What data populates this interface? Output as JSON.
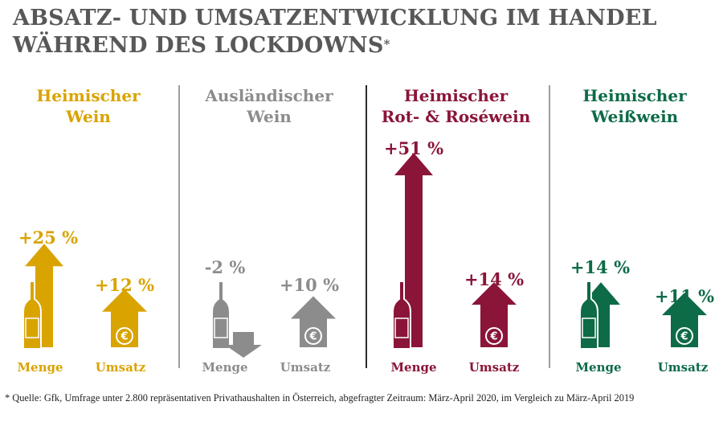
{
  "title_line1": "ABSATZ- UND UMSATZENTWICKLUNG IM HANDEL",
  "title_line2": "WÄHREND DES LOCKDOWNS",
  "title_mark": "*",
  "footnote": "* Quelle: Gfk, Umfrage unter 2.800 repräsentativen Privathaushalten in Österreich, abgefragter Zeitraum: März-April 2020, im Vergleich zu März-April 2019",
  "colors": {
    "heimischer_wein": "#D9A300",
    "auslaendischer_wein": "#8C8C8C",
    "rot_rose": "#8A1538",
    "weisswein": "#0D6B47",
    "divider_gray": "#9E9E9E",
    "divider_dark": "#2B2B2B"
  },
  "chart_data": [
    {
      "type": "bar",
      "title_line1": "Heimischer",
      "title_line2": "Wein",
      "color": "#D9A300",
      "categories": [
        "Menge",
        "Umsatz"
      ],
      "values": [
        25,
        12
      ],
      "value_labels": [
        "+25 %",
        "+12 %"
      ],
      "icons": [
        "wine-bottle-icon",
        "euro-icon"
      ]
    },
    {
      "type": "bar",
      "title_line1": "Ausländischer",
      "title_line2": "Wein",
      "color": "#8C8C8C",
      "categories": [
        "Menge",
        "Umsatz"
      ],
      "values": [
        -2,
        10
      ],
      "value_labels": [
        "-2 %",
        "+10 %"
      ],
      "icons": [
        "wine-bottle-icon",
        "euro-icon"
      ]
    },
    {
      "type": "bar",
      "title_line1": "Heimischer",
      "title_line2": "Rot- & Roséwein",
      "color": "#8A1538",
      "categories": [
        "Menge",
        "Umsatz"
      ],
      "values": [
        51,
        14
      ],
      "value_labels": [
        "+51 %",
        "+14 %"
      ],
      "icons": [
        "wine-bottle-icon",
        "euro-icon"
      ]
    },
    {
      "type": "bar",
      "title_line1": "Heimischer",
      "title_line2": "Weißwein",
      "color": "#0D6B47",
      "categories": [
        "Menge",
        "Umsatz"
      ],
      "values": [
        14,
        11
      ],
      "value_labels": [
        "+14 %",
        "+11 %"
      ],
      "icons": [
        "wine-bottle-icon",
        "euro-icon"
      ]
    }
  ]
}
